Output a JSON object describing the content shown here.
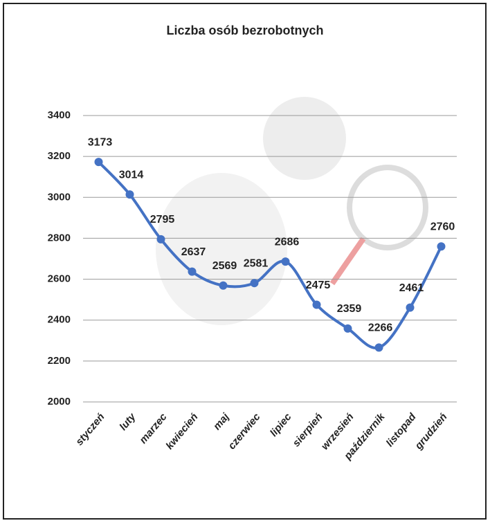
{
  "chart_data": {
    "type": "line",
    "title": "Liczba osób bezrobotnych",
    "categories": [
      "styczeń",
      "luty",
      "marzec",
      "kwiecień",
      "maj",
      "czerwiec",
      "lipiec",
      "sierpień",
      "wrzesień",
      "październik",
      "listopad",
      "grudzień"
    ],
    "values": [
      3173,
      3014,
      2795,
      2637,
      2569,
      2581,
      2686,
      2475,
      2359,
      2266,
      2461,
      2760
    ],
    "color": "#4472c4",
    "ylim": [
      2000,
      3400
    ],
    "yticks": [
      2000,
      2200,
      2400,
      2600,
      2800,
      3000,
      3200,
      3400
    ],
    "grid": true
  }
}
